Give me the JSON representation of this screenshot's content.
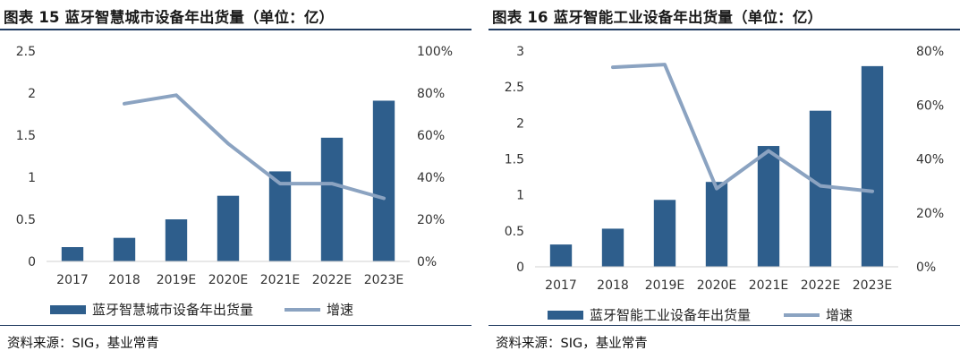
{
  "chart_data": [
    {
      "type": "bar",
      "title": "图表 15 蓝牙智慧城市设备年出货量（单位：亿）",
      "source": "资料来源：SIG，基业常青",
      "categories": [
        "2017",
        "2018",
        "2019E",
        "2020E",
        "2021E",
        "2022E",
        "2023E"
      ],
      "y_ticks": [
        "0",
        "0.5",
        "1",
        "1.5",
        "2",
        "2.5"
      ],
      "y_ticks_secondary": [
        "0%",
        "20%",
        "40%",
        "60%",
        "80%",
        "100%"
      ],
      "ylim": [
        0,
        2.5
      ],
      "ylim_secondary": [
        0,
        100
      ],
      "series": [
        {
          "name": "蓝牙智慧城市设备年出货量",
          "type": "bar",
          "axis": "primary",
          "values": [
            0.17,
            0.28,
            0.5,
            0.78,
            1.07,
            1.47,
            1.91
          ]
        },
        {
          "name": "增速",
          "type": "line",
          "axis": "secondary",
          "values": [
            null,
            75,
            79,
            56,
            37,
            37,
            30
          ]
        }
      ],
      "legend": "bottom",
      "grid": false,
      "colors": {
        "bar": "#2e5e8c",
        "line": "#8ba3c1"
      }
    },
    {
      "type": "bar",
      "title": "图表 16 蓝牙智能工业设备年出货量（单位：亿）",
      "source": "资料来源：SIG，基业常青",
      "categories": [
        "2017",
        "2018",
        "2019E",
        "2020E",
        "2021E",
        "2022E",
        "2023E"
      ],
      "y_ticks": [
        "0",
        "0.5",
        "1",
        "1.5",
        "2",
        "2.5",
        "3"
      ],
      "y_ticks_secondary": [
        "0%",
        "20%",
        "40%",
        "60%",
        "80%"
      ],
      "ylim": [
        0,
        3
      ],
      "ylim_secondary": [
        0,
        80
      ],
      "series": [
        {
          "name": "蓝牙智能工业设备年出货量",
          "type": "bar",
          "axis": "primary",
          "values": [
            0.31,
            0.53,
            0.93,
            1.18,
            1.68,
            2.17,
            2.79
          ]
        },
        {
          "name": "增速",
          "type": "line",
          "axis": "secondary",
          "values": [
            null,
            74,
            75,
            29,
            43,
            30,
            28
          ]
        }
      ],
      "legend": "bottom",
      "grid": false,
      "colors": {
        "bar": "#2e5e8c",
        "line": "#8ba3c1"
      }
    }
  ]
}
